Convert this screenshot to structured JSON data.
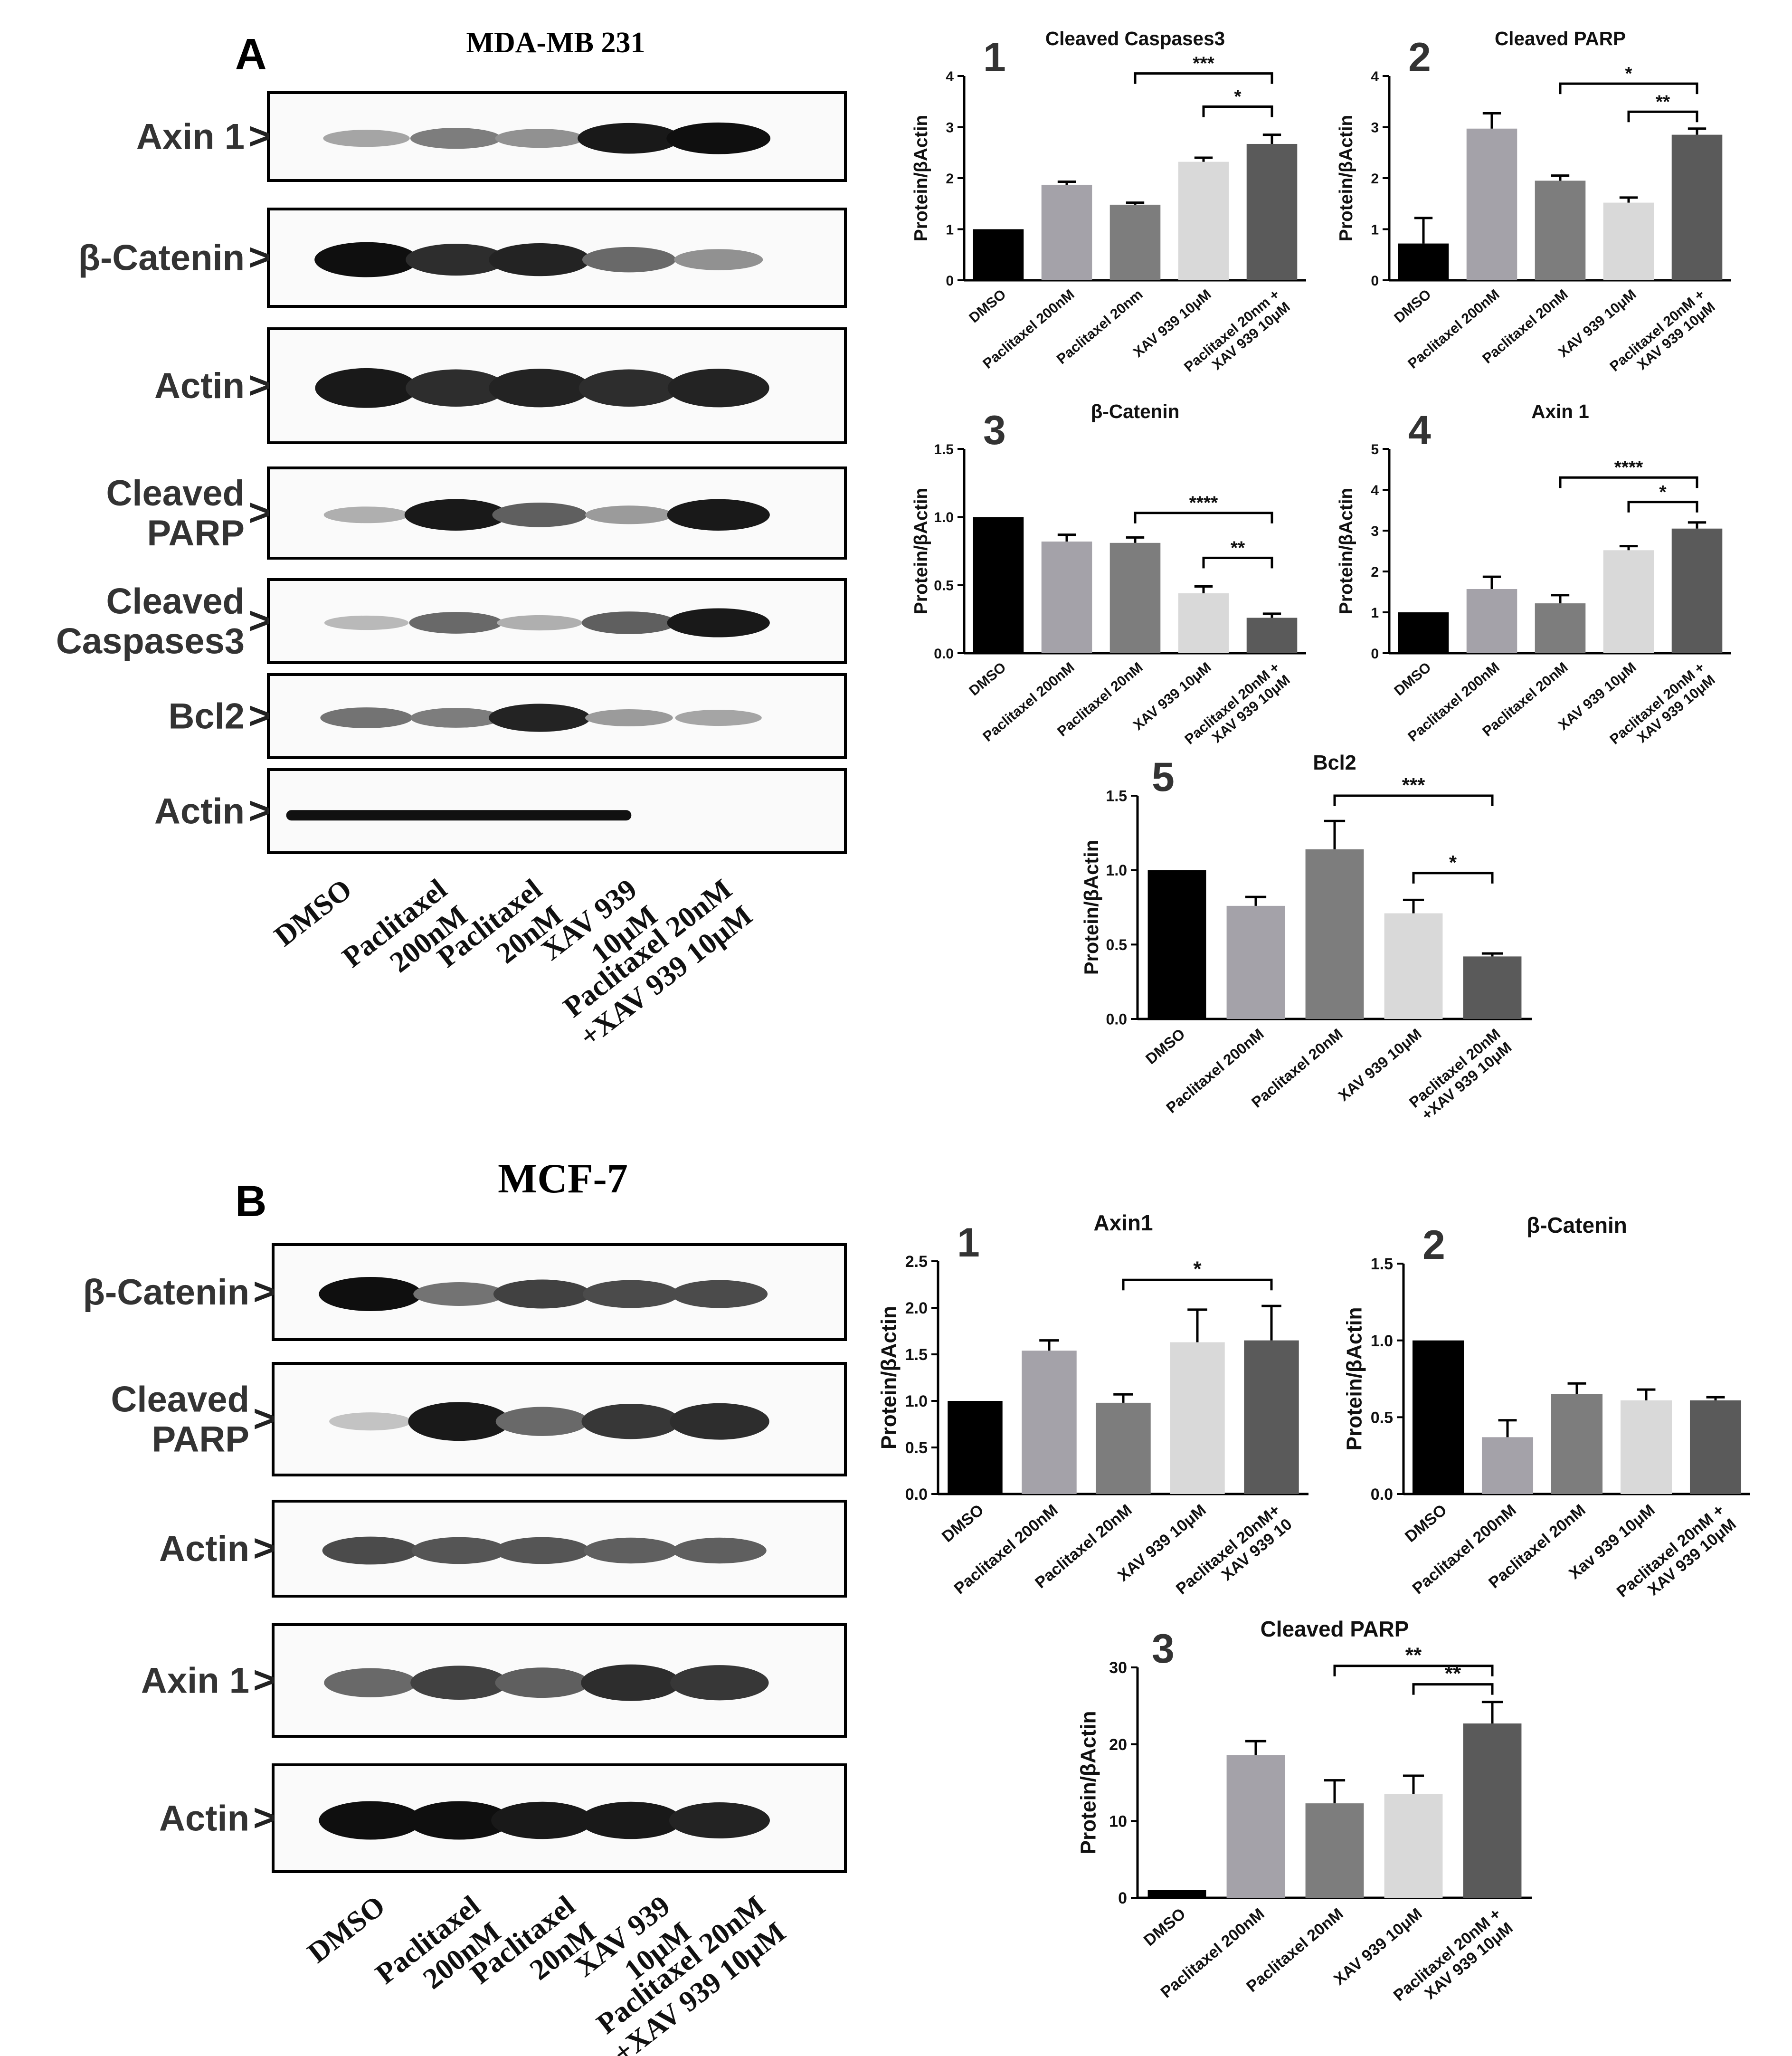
{
  "panelA": {
    "letter": "A",
    "cell_line": "MDA-MB 231",
    "blots": [
      {
        "label": [
          "Axin 1"
        ],
        "lanes": [
          0.25,
          0.45,
          0.35,
          0.95,
          1.0,
          0.0
        ]
      },
      {
        "label": [
          "β-Catenin"
        ],
        "lanes": [
          1.0,
          0.85,
          0.9,
          0.55,
          0.35,
          0.0
        ]
      },
      {
        "label": [
          "Actin"
        ],
        "lanes": [
          0.95,
          0.85,
          0.9,
          0.85,
          0.9,
          0.0
        ]
      },
      {
        "label": [
          "Cleaved",
          "PARP"
        ],
        "lanes": [
          0.2,
          0.95,
          0.6,
          0.3,
          0.95,
          0.0
        ]
      },
      {
        "label": [
          "Cleaved",
          "Caspases3"
        ],
        "lanes": [
          0.15,
          0.55,
          0.2,
          0.6,
          0.95,
          0.0
        ]
      },
      {
        "label": [
          "Bcl2"
        ],
        "lanes": [
          0.5,
          0.45,
          0.9,
          0.3,
          0.25,
          0.0
        ]
      },
      {
        "label": [
          "Actin"
        ],
        "lanes": [
          1.0,
          1.0,
          1.0,
          1.0,
          1.0,
          1.0
        ]
      }
    ],
    "lanes": [
      [
        "DMSO"
      ],
      [
        "Paclitaxel",
        "200nM"
      ],
      [
        "Paclitaxel",
        "20nM"
      ],
      [
        "XAV 939",
        "10μM"
      ],
      [
        "Paclitaxel 20nM",
        "+XAV 939 10μM"
      ]
    ]
  },
  "panelB": {
    "letter": "B",
    "cell_line": "MCF-7",
    "blots": [
      {
        "label": [
          "β-Catenin"
        ],
        "lanes": [
          1.0,
          0.5,
          0.75,
          0.7,
          0.7,
          0.0
        ]
      },
      {
        "label": [
          "Cleaved",
          "PARP"
        ],
        "lanes": [
          0.1,
          0.95,
          0.55,
          0.8,
          0.85,
          0.0
        ]
      },
      {
        "label": [
          "Actin"
        ],
        "lanes": [
          0.7,
          0.65,
          0.65,
          0.6,
          0.6,
          0.0
        ]
      },
      {
        "label": [
          "Axin 1"
        ],
        "lanes": [
          0.55,
          0.75,
          0.6,
          0.85,
          0.8,
          0.0
        ]
      },
      {
        "label": [
          "Actin"
        ],
        "lanes": [
          1.0,
          1.0,
          0.95,
          0.95,
          0.9,
          0.0
        ]
      }
    ],
    "lanes": [
      [
        "DMSO"
      ],
      [
        "Paclitaxel",
        "200nM"
      ],
      [
        "Paclitaxel",
        "20nM"
      ],
      [
        "XAV 939",
        "10μM"
      ],
      [
        "Paclitaxel 20nM",
        "+XAV 939 10μM"
      ]
    ]
  },
  "ylabel": "Protein/βActin",
  "colors": [
    "#000000",
    "#a4a2a9",
    "#7d7d7d",
    "#d9d9d9",
    "#5a5a5a"
  ],
  "chart_data": [
    {
      "id": "A1",
      "number": "1",
      "title": "Cleaved Caspases3",
      "type": "bar",
      "categories": [
        "DMSO",
        "Paclitaxel 200nM",
        "Paclitaxel 20nm",
        "XAV 939 10μM",
        "Paclitaxel 20nm +|XAV 939 10μM"
      ],
      "values": [
        1.0,
        1.87,
        1.48,
        2.32,
        2.67
      ],
      "errors": [
        0.0,
        0.06,
        0.04,
        0.08,
        0.18
      ],
      "ylim": [
        0,
        4
      ],
      "yticks": [
        "0",
        "1",
        "2",
        "3",
        "4"
      ],
      "significance": [
        {
          "from": 2,
          "to": 4,
          "label": "***",
          "level": 4.05
        },
        {
          "from": 3,
          "to": 4,
          "label": "*",
          "level": 3.4
        }
      ]
    },
    {
      "id": "A2",
      "number": "2",
      "title": "Cleaved PARP",
      "type": "bar",
      "categories": [
        "DMSO",
        "Paclitaxel 200nM",
        "Paclitaxel 20nM",
        "XAV 939 10μM",
        "Paclitaxel 20nM +|XAV 939 10μM"
      ],
      "values": [
        0.72,
        2.97,
        1.95,
        1.52,
        2.85
      ],
      "errors": [
        0.5,
        0.3,
        0.1,
        0.1,
        0.12
      ],
      "ylim": [
        0,
        4
      ],
      "yticks": [
        "0",
        "1",
        "2",
        "3",
        "4"
      ],
      "significance": [
        {
          "from": 2,
          "to": 4,
          "label": "*",
          "level": 3.85
        },
        {
          "from": 3,
          "to": 4,
          "label": "**",
          "level": 3.3
        }
      ]
    },
    {
      "id": "A3",
      "number": "3",
      "title": "β-Catenin",
      "type": "bar",
      "categories": [
        "DMSO",
        "Paclitaxel 200nM",
        "Paclitaxel 20nM",
        "XAV 939 10μM",
        "Paclitaxel 20nM +|XAV 939 10μM"
      ],
      "values": [
        1.0,
        0.82,
        0.81,
        0.44,
        0.26
      ],
      "errors": [
        0.0,
        0.05,
        0.04,
        0.05,
        0.03
      ],
      "ylim": [
        0,
        1.5
      ],
      "yticks": [
        "0.0",
        "0.5",
        "1.0",
        "1.5"
      ],
      "significance": [
        {
          "from": 2,
          "to": 4,
          "label": "****",
          "level": 1.03
        },
        {
          "from": 3,
          "to": 4,
          "label": "**",
          "level": 0.7
        }
      ]
    },
    {
      "id": "A4",
      "number": "4",
      "title": "Axin 1",
      "type": "bar",
      "categories": [
        "DMSO",
        "Paclitaxel 200nM",
        "Paclitaxel 20nM",
        "XAV 939 10μM",
        "Paclitaxel 20nM +|XAV 939 10μM"
      ],
      "values": [
        1.0,
        1.57,
        1.22,
        2.52,
        3.05
      ],
      "errors": [
        0.0,
        0.3,
        0.2,
        0.1,
        0.15
      ],
      "ylim": [
        0,
        5
      ],
      "yticks": [
        "0",
        "1",
        "2",
        "3",
        "4",
        "5"
      ],
      "significance": [
        {
          "from": 2,
          "to": 4,
          "label": "****",
          "level": 4.3
        },
        {
          "from": 3,
          "to": 4,
          "label": "*",
          "level": 3.7
        }
      ]
    },
    {
      "id": "A5",
      "number": "5",
      "title": "Bcl2",
      "type": "bar",
      "categories": [
        "DMSO",
        "Paclitaxel 200nM",
        "Paclitaxel 20nM",
        "XAV 939 10μM",
        "Paclitaxel 20nM|+XAV 939 10μM"
      ],
      "values": [
        1.0,
        0.76,
        1.14,
        0.71,
        0.42
      ],
      "errors": [
        0.0,
        0.06,
        0.19,
        0.09,
        0.02
      ],
      "ylim": [
        0,
        1.5
      ],
      "yticks": [
        "0.0",
        "0.5",
        "1.0",
        "1.5"
      ],
      "significance": [
        {
          "from": 2,
          "to": 4,
          "label": "***",
          "level": 1.5
        },
        {
          "from": 3,
          "to": 4,
          "label": "*",
          "level": 0.98
        }
      ]
    },
    {
      "id": "B1",
      "number": "1",
      "title": "Axin1",
      "type": "bar",
      "categories": [
        "DMSO",
        "Paclitaxel 200nM",
        "Paclitaxel 20nM",
        "XAV 939 10μM",
        "Paclitaxel 20nM+|XAV 939 10"
      ],
      "values": [
        1.0,
        1.54,
        0.98,
        1.63,
        1.65
      ],
      "errors": [
        0.0,
        0.11,
        0.09,
        0.35,
        0.37
      ],
      "ylim": [
        0,
        2.5
      ],
      "yticks": [
        "0.0",
        "0.5",
        "1.0",
        "1.5",
        "2.0",
        "2.5"
      ],
      "significance": [
        {
          "from": 2,
          "to": 4,
          "label": "*",
          "level": 2.3
        }
      ]
    },
    {
      "id": "B2",
      "number": "2",
      "title": "β-Catenin",
      "type": "bar",
      "categories": [
        "DMSO",
        "Paclitaxel 200nM",
        "Paclitaxel 20nM",
        "Xav 939 10μM",
        "Paclitaxel 20nM +|XAV 939 10μM"
      ],
      "values": [
        1.0,
        0.37,
        0.65,
        0.61,
        0.61
      ],
      "errors": [
        0.0,
        0.11,
        0.07,
        0.07,
        0.02
      ],
      "ylim": [
        0,
        1.5
      ],
      "yticks": [
        "0.0",
        "0.5",
        "1.0",
        "1.5"
      ],
      "significance": []
    },
    {
      "id": "B3",
      "number": "3",
      "title": "Cleaved PARP",
      "type": "bar",
      "categories": [
        "DMSO",
        "Paclitaxel 200nM",
        "Paclitaxel 20nM",
        "XAV 939 10μM",
        "Paclitaxel 20nM +|XAV 939 10μM"
      ],
      "values": [
        1.0,
        18.6,
        12.3,
        13.5,
        22.7
      ],
      "errors": [
        0.0,
        1.8,
        3.0,
        2.4,
        2.8
      ],
      "ylim": [
        0,
        30
      ],
      "yticks": [
        "0",
        "10",
        "20",
        "30"
      ],
      "significance": [
        {
          "from": 2,
          "to": 4,
          "label": "**",
          "level": 30.2
        },
        {
          "from": 3,
          "to": 4,
          "label": "**",
          "level": 27.8
        }
      ]
    }
  ]
}
